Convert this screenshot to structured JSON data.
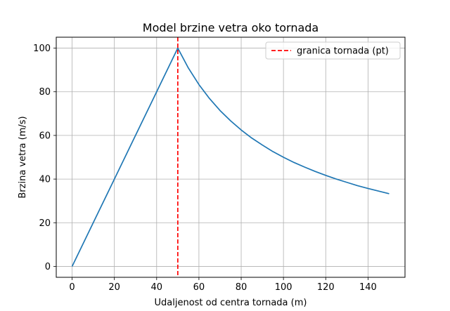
{
  "chart_data": {
    "type": "line",
    "title": "Model brzine vetra oko tornada",
    "xlabel": "Udaljenost od centra tornada (m)",
    "ylabel": "Brzina vetra (m/s)",
    "xlim": [
      -7.5,
      157.5
    ],
    "ylim": [
      -5,
      105
    ],
    "xticks": [
      0,
      20,
      40,
      60,
      80,
      100,
      120,
      140
    ],
    "yticks": [
      0,
      20,
      40,
      60,
      80,
      100
    ],
    "grid": true,
    "legend_position": "top-right",
    "series": [
      {
        "name": "",
        "color": "#1f77b4",
        "x": [
          0,
          10,
          20,
          30,
          40,
          50,
          55,
          60,
          65,
          70,
          75,
          80,
          85,
          90,
          95,
          100,
          105,
          110,
          115,
          120,
          125,
          130,
          135,
          140,
          145,
          150
        ],
        "y": [
          0,
          20,
          40,
          60,
          80,
          100,
          90.9,
          83.3,
          76.9,
          71.4,
          66.7,
          62.5,
          58.8,
          55.6,
          52.6,
          50.0,
          47.6,
          45.5,
          43.5,
          41.7,
          40.0,
          38.5,
          37.0,
          35.7,
          34.5,
          33.3
        ]
      }
    ],
    "reference_lines": [
      {
        "name": "granica tornada (pt)",
        "orientation": "vertical",
        "x": 50,
        "color": "#ff0000",
        "style": "dashed"
      }
    ]
  }
}
